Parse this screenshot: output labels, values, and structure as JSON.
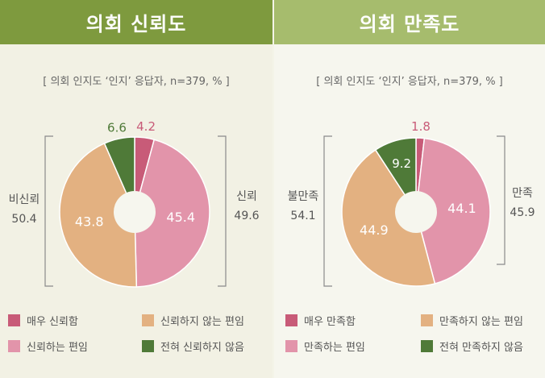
{
  "colors": {
    "very": "#c85b78",
    "somewhat": "#e294aa",
    "not_somewhat": "#e3b181",
    "not_at_all": "#4f7a38"
  },
  "chart_data": [
    {
      "type": "pie",
      "title": "의회 신뢰도",
      "subtitle": "[ 의회 인지도 ‘인지’ 응답자, n=379, % ]",
      "slices": [
        {
          "key": "very",
          "label": "매우 신뢰함",
          "value": 4.2,
          "value_text": "4.2"
        },
        {
          "key": "somewhat",
          "label": "신뢰하는 편임",
          "value": 45.4,
          "value_text": "45.4"
        },
        {
          "key": "not_somewhat",
          "label": "신뢰하지 않는 편임",
          "value": 43.8,
          "value_text": "43.8"
        },
        {
          "key": "not_at_all",
          "label": "전혀 신뢰하지 않음",
          "value": 6.6,
          "value_text": "6.6"
        }
      ],
      "bracket_right": {
        "label": "신뢰",
        "value": "49.6"
      },
      "bracket_left": {
        "label": "비신뢰",
        "value": "50.4"
      }
    },
    {
      "type": "pie",
      "title": "의회 만족도",
      "subtitle": "[ 의회 인지도 ‘인지’ 응답자, n=379, % ]",
      "slices": [
        {
          "key": "very",
          "label": "매우 만족함",
          "value": 1.8,
          "value_text": "1.8"
        },
        {
          "key": "somewhat",
          "label": "만족하는 편임",
          "value": 44.1,
          "value_text": "44.1"
        },
        {
          "key": "not_somewhat",
          "label": "만족하지 않는 편임",
          "value": 44.9,
          "value_text": "44.9"
        },
        {
          "key": "not_at_all",
          "label": "전혀 만족하지 않음",
          "value": 9.2,
          "value_text": "9.2"
        }
      ],
      "bracket_right": {
        "label": "만족",
        "value": "45.9"
      },
      "bracket_left": {
        "label": "불만족",
        "value": "54.1"
      }
    }
  ]
}
